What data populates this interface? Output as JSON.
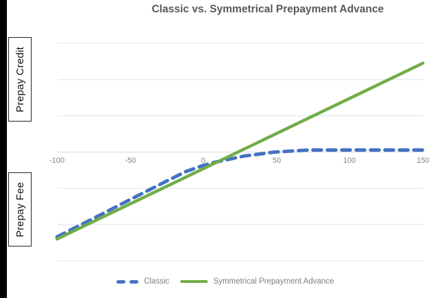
{
  "title": "Classic vs. Symmetrical Prepayment Advance",
  "y_region_labels": {
    "upper": "Prepay Credit",
    "lower": "Prepay Fee"
  },
  "legend": [
    {
      "label": "Classic",
      "color": "#4472C4",
      "style": "dashed"
    },
    {
      "label": "Symmetrical Prepayment Advance",
      "color": "#70AD47",
      "style": "solid"
    }
  ],
  "colors": {
    "classic_blue": "#4472C4",
    "symmetrical_green": "#70AD47",
    "gridline": "#dbe3f0",
    "axis_line": "#d7d7d7",
    "title_text": "#595959",
    "tick_text": "#7f7f7f",
    "label_box_border": "#262626",
    "left_bar": "#000000"
  },
  "chart_data": {
    "type": "line",
    "title": "Classic vs. Symmetrical Prepayment Advance",
    "xlabel": "",
    "ylabel_upper_region": "Prepay Credit",
    "ylabel_lower_region": "Prepay Fee",
    "x_ticks": [
      -100,
      -50,
      0,
      50,
      100,
      150
    ],
    "xlim": [
      -100,
      150
    ],
    "ylim": [
      -3.2,
      3.2
    ],
    "y_gridline_values": [
      3,
      2,
      1,
      0,
      -1,
      -2,
      -3
    ],
    "y_tick_labels_shown": false,
    "grid": "horizontal-only",
    "legend_position": "bottom-center",
    "series": [
      {
        "name": "Classic",
        "color": "#4472C4",
        "line_style": "dashed",
        "points": [
          [
            -100,
            -2.34
          ],
          [
            -75,
            -1.83
          ],
          [
            -50,
            -1.31
          ],
          [
            -25,
            -0.8
          ],
          [
            -12,
            -0.54
          ],
          [
            0,
            -0.37
          ],
          [
            8,
            -0.28
          ],
          [
            28,
            -0.11
          ],
          [
            49,
            0.0
          ],
          [
            72,
            0.055
          ],
          [
            100,
            0.055
          ],
          [
            125,
            0.055
          ],
          [
            150,
            0.055
          ]
        ]
      },
      {
        "name": "Symmetrical Prepayment Advance",
        "color": "#70AD47",
        "line_style": "solid",
        "points": [
          [
            -100,
            -2.4
          ],
          [
            150,
            2.45
          ]
        ]
      }
    ]
  }
}
